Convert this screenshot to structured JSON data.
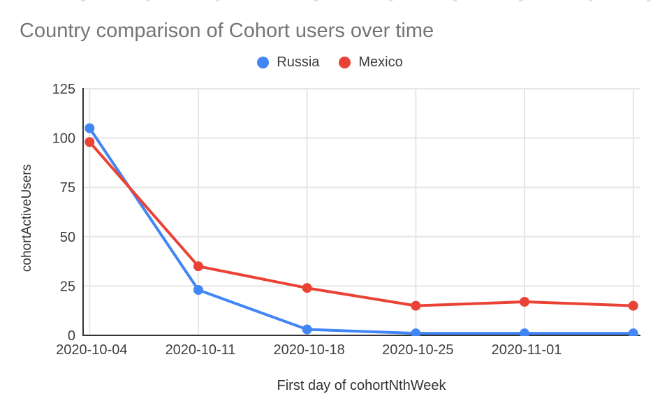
{
  "page": {
    "background": "#ffffff"
  },
  "theme": {
    "title_text": "#757575",
    "axis_tick_text": "#404040",
    "axis_title_text": "#333333",
    "axis_line": "#333333",
    "gridline": "#e6e6e6"
  },
  "chart_data": {
    "type": "line",
    "title": "Country comparison of Cohort users over time",
    "xlabel": "First day of cohortNthWeek",
    "ylabel": "cohortActiveUsers",
    "x_tick_labels": [
      "2020-10-04",
      "2020-10-11",
      "2020-10-18",
      "2020-10-25",
      "2020-11-01",
      ""
    ],
    "y_ticks": [
      0,
      25,
      50,
      75,
      100,
      125
    ],
    "ylim": [
      0,
      125
    ],
    "grid": true,
    "legend_position": "top",
    "series": [
      {
        "name": "Russia",
        "color": "#4285F4",
        "values": [
          105,
          23,
          3,
          1,
          1,
          1
        ]
      },
      {
        "name": "Mexico",
        "color": "#EA4335",
        "values": [
          98,
          35,
          24,
          15,
          17,
          15
        ]
      }
    ]
  }
}
